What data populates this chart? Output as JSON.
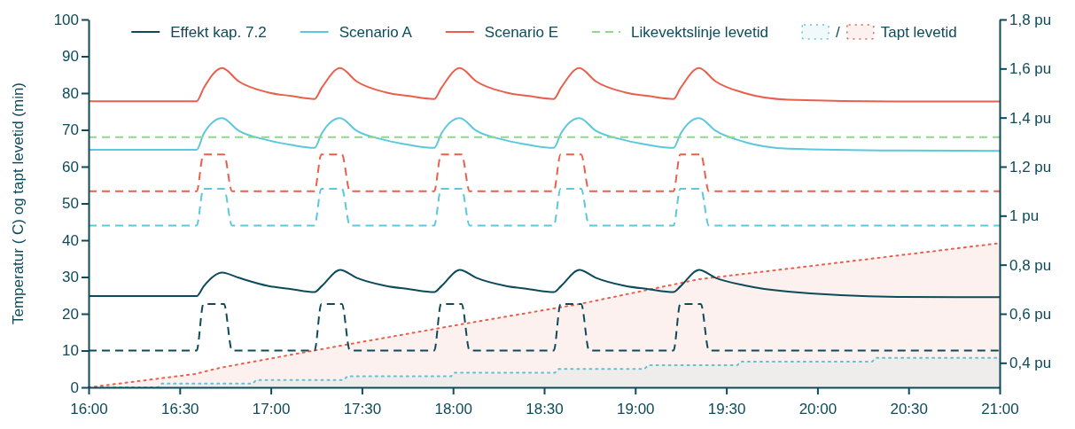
{
  "chart_data": {
    "type": "line",
    "ylabel": "Temperatur ( C) og tapt levetid (min)",
    "legend": "top",
    "xlim": [
      16,
      21
    ],
    "xticks": [
      {
        "value": 16,
        "label": "16:00"
      },
      {
        "value": 16.5,
        "label": "16:30"
      },
      {
        "value": 17,
        "label": "17:00"
      },
      {
        "value": 17.5,
        "label": "17:30"
      },
      {
        "value": 18,
        "label": "18:00"
      },
      {
        "value": 18.5,
        "label": "18:30"
      },
      {
        "value": 19,
        "label": "19:00"
      },
      {
        "value": 19.5,
        "label": "19:30"
      },
      {
        "value": 20,
        "label": "20:00"
      },
      {
        "value": 20.5,
        "label": "20:30"
      },
      {
        "value": 21,
        "label": "21:00"
      }
    ],
    "ylim": [
      0,
      100
    ],
    "yticks": [
      0,
      10,
      20,
      30,
      40,
      50,
      60,
      70,
      80,
      90,
      100
    ],
    "y2lim": [
      0.3,
      1.8
    ],
    "y2ticks": [
      {
        "value": 0.4,
        "label": "0,4 pu"
      },
      {
        "value": 0.6,
        "label": "0,6 pu"
      },
      {
        "value": 0.8,
        "label": "0,8 pu"
      },
      {
        "value": 1,
        "label": "1 pu"
      },
      {
        "value": 1.2,
        "label": "1,2 pu"
      },
      {
        "value": 1.4,
        "label": "1,4 pu"
      },
      {
        "value": 1.6,
        "label": "1,6 pu"
      },
      {
        "value": 1.8,
        "label": "1,8 pu"
      }
    ],
    "series": [
      {
        "name": "Effekt kap. 7.2",
        "color": "#0d4a5a",
        "line_style": "solid",
        "x": [
          16,
          16.593,
          16.632,
          16.733,
          16.823,
          16.983,
          17.113,
          17.24,
          17.279,
          17.38,
          17.47,
          17.63,
          17.76,
          17.897,
          17.936,
          18.037,
          18.127,
          18.287,
          18.417,
          18.553,
          18.592,
          18.693,
          18.783,
          18.943,
          19.073,
          19.21,
          19.249,
          19.35,
          19.44,
          19.6,
          19.84,
          20.44,
          21
        ],
        "values": [
          24.8,
          24.8,
          27.5,
          31.2,
          29.8,
          27.6,
          26.7,
          25.9,
          27.5,
          31.9,
          29.8,
          27.6,
          26.7,
          25.9,
          27.5,
          31.9,
          29.8,
          27.6,
          26.7,
          25.9,
          27.5,
          31.9,
          29.8,
          27.6,
          26.7,
          25.9,
          27.5,
          31.9,
          29.8,
          27.7,
          26,
          24.6,
          24.5
        ]
      },
      {
        "name": "Scenario A",
        "color": "#5bc8dc",
        "line_style": "solid",
        "x": [
          16,
          16.593,
          16.632,
          16.733,
          16.823,
          16.983,
          17.113,
          17.24,
          17.279,
          17.38,
          17.47,
          17.63,
          17.76,
          17.897,
          17.936,
          18.037,
          18.127,
          18.287,
          18.417,
          18.553,
          18.592,
          18.693,
          18.783,
          18.943,
          19.073,
          19.21,
          19.249,
          19.35,
          19.44,
          19.6,
          19.84,
          20.44,
          21
        ],
        "values": [
          64.6,
          64.6,
          69,
          73.2,
          69.8,
          67.2,
          65.9,
          65.1,
          69,
          73.2,
          69.8,
          67.2,
          65.9,
          65.1,
          69,
          73.2,
          69.8,
          67.2,
          65.9,
          65.1,
          69,
          73.2,
          69.8,
          67.2,
          65.9,
          65.1,
          69,
          73.2,
          69.8,
          66.7,
          64.9,
          64.4,
          64.3
        ]
      },
      {
        "name": "Scenario E",
        "color": "#e8604c",
        "line_style": "solid",
        "x": [
          16,
          16.593,
          16.632,
          16.733,
          16.823,
          16.983,
          17.113,
          17.24,
          17.279,
          17.38,
          17.47,
          17.63,
          17.76,
          17.897,
          17.936,
          18.037,
          18.127,
          18.287,
          18.417,
          18.553,
          18.592,
          18.693,
          18.783,
          18.943,
          19.073,
          19.21,
          19.249,
          19.35,
          19.44,
          19.6,
          19.84,
          20.44,
          21
        ],
        "values": [
          77.8,
          77.8,
          81.4,
          86.8,
          83.2,
          80.2,
          79.2,
          78.4,
          81.4,
          86.8,
          83.2,
          80.2,
          79.2,
          78.4,
          81.4,
          86.8,
          83.2,
          80.2,
          79.2,
          78.4,
          81.4,
          86.8,
          83.2,
          80.2,
          79.2,
          78.4,
          81.4,
          86.8,
          83.2,
          80,
          78.2,
          77.7,
          77.7
        ]
      },
      {
        "name": "Likevektslinje levetid",
        "color": "#8fd88a",
        "line_style": "dashed",
        "x": [
          16,
          21
        ],
        "values": [
          68,
          68
        ]
      },
      {
        "name": "/",
        "type": "area",
        "color": "#5bc8dc",
        "line_style": "dotted",
        "x": [
          16,
          16.38,
          16.4,
          16.9,
          16.92,
          17.4,
          17.42,
          17.99,
          18.01,
          18.56,
          18.58,
          19.05,
          19.07,
          19.56,
          19.58,
          20.3,
          20.32,
          21
        ],
        "values": [
          0,
          0,
          1,
          1,
          2,
          2,
          3,
          3,
          4,
          4,
          5,
          5,
          6,
          6,
          7,
          7,
          8,
          8
        ]
      },
      {
        "name": "Tapt levetid",
        "type": "area",
        "color": "#e8604c",
        "line_style": "dotted",
        "x": [
          16,
          16.58,
          16.72,
          17.38,
          18.04,
          18.7,
          19.35,
          20,
          21
        ],
        "values": [
          0,
          3.6,
          5.3,
          11.3,
          17.1,
          22.7,
          29.4,
          33.2,
          39.2
        ]
      },
      {
        "axis": "y2",
        "color": "#0d4a5a",
        "line_style": "dashed",
        "x": [
          16,
          16.593,
          16.63,
          16.743,
          16.787,
          17.24,
          17.277,
          17.39,
          17.434,
          17.897,
          17.934,
          18.047,
          18.091,
          18.553,
          18.59,
          18.703,
          18.747,
          19.21,
          19.247,
          19.36,
          19.404,
          21
        ],
        "values": [
          0.45,
          0.45,
          0.64,
          0.64,
          0.45,
          0.45,
          0.64,
          0.64,
          0.45,
          0.45,
          0.64,
          0.64,
          0.45,
          0.45,
          0.64,
          0.64,
          0.45,
          0.45,
          0.64,
          0.64,
          0.45,
          0.45
        ]
      },
      {
        "axis": "y2",
        "color": "#5bc8dc",
        "line_style": "dashed",
        "x": [
          16,
          16.593,
          16.63,
          16.743,
          16.787,
          17.24,
          17.277,
          17.39,
          17.434,
          17.897,
          17.934,
          18.047,
          18.091,
          18.553,
          18.59,
          18.703,
          18.747,
          19.21,
          19.247,
          19.36,
          19.404,
          21
        ],
        "values": [
          0.96,
          0.96,
          1.11,
          1.11,
          0.96,
          0.96,
          1.11,
          1.11,
          0.96,
          0.96,
          1.11,
          1.11,
          0.96,
          0.96,
          1.11,
          1.11,
          0.96,
          0.96,
          1.11,
          1.11,
          0.96,
          0.96
        ]
      },
      {
        "axis": "y2",
        "color": "#e8604c",
        "line_style": "dashed",
        "x": [
          16,
          16.593,
          16.63,
          16.743,
          16.787,
          17.24,
          17.277,
          17.39,
          17.434,
          17.897,
          17.934,
          18.047,
          18.091,
          18.553,
          18.59,
          18.703,
          18.747,
          19.21,
          19.247,
          19.36,
          19.404,
          21
        ],
        "values": [
          1.1,
          1.1,
          1.25,
          1.25,
          1.1,
          1.1,
          1.25,
          1.25,
          1.1,
          1.1,
          1.25,
          1.25,
          1.1,
          1.1,
          1.25,
          1.25,
          1.1,
          1.1,
          1.25,
          1.25,
          1.1,
          1.1
        ]
      }
    ]
  }
}
